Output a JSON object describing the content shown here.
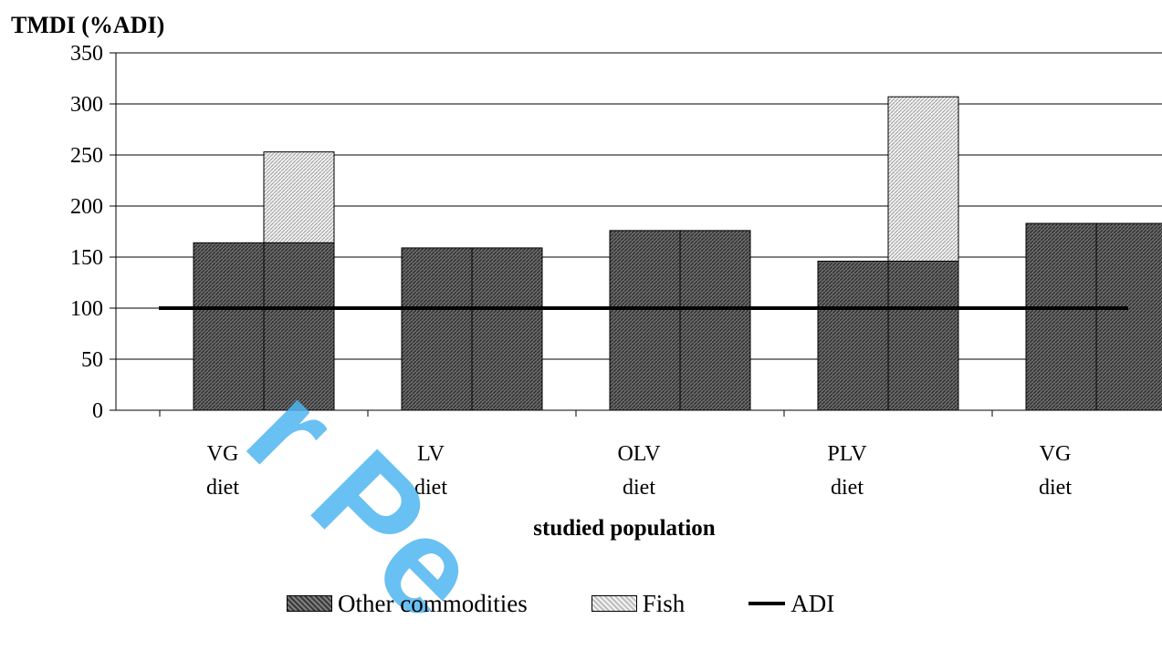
{
  "chart_data": {
    "type": "bar",
    "title": "TMDI (%ADI)",
    "xlabel": "studied population",
    "ylabel": "TMDI (%ADI)",
    "ylim": [
      0,
      350
    ],
    "yticks": [
      0,
      50,
      100,
      150,
      200,
      250,
      300,
      350
    ],
    "grid": true,
    "categories": [
      {
        "line1": "VG",
        "line2": "diet"
      },
      {
        "line1": "LV",
        "line2": "diet"
      },
      {
        "line1": "OLV",
        "line2": "diet"
      },
      {
        "line1": "PLV",
        "line2": "diet"
      },
      {
        "line1": "VG",
        "line2": "diet"
      }
    ],
    "series": [
      {
        "name": "Other commodities",
        "values": [
          164,
          159,
          176,
          146,
          183
        ]
      },
      {
        "name": "Fish",
        "values": [
          89,
          0,
          0,
          161,
          0
        ]
      }
    ],
    "reference_line": {
      "name": "ADI",
      "value": 100
    },
    "legend_position": "bottom-center",
    "colors": {
      "other": "#555555",
      "fish": "#dddddd",
      "line": "#000000"
    }
  },
  "watermark": "r Pe"
}
